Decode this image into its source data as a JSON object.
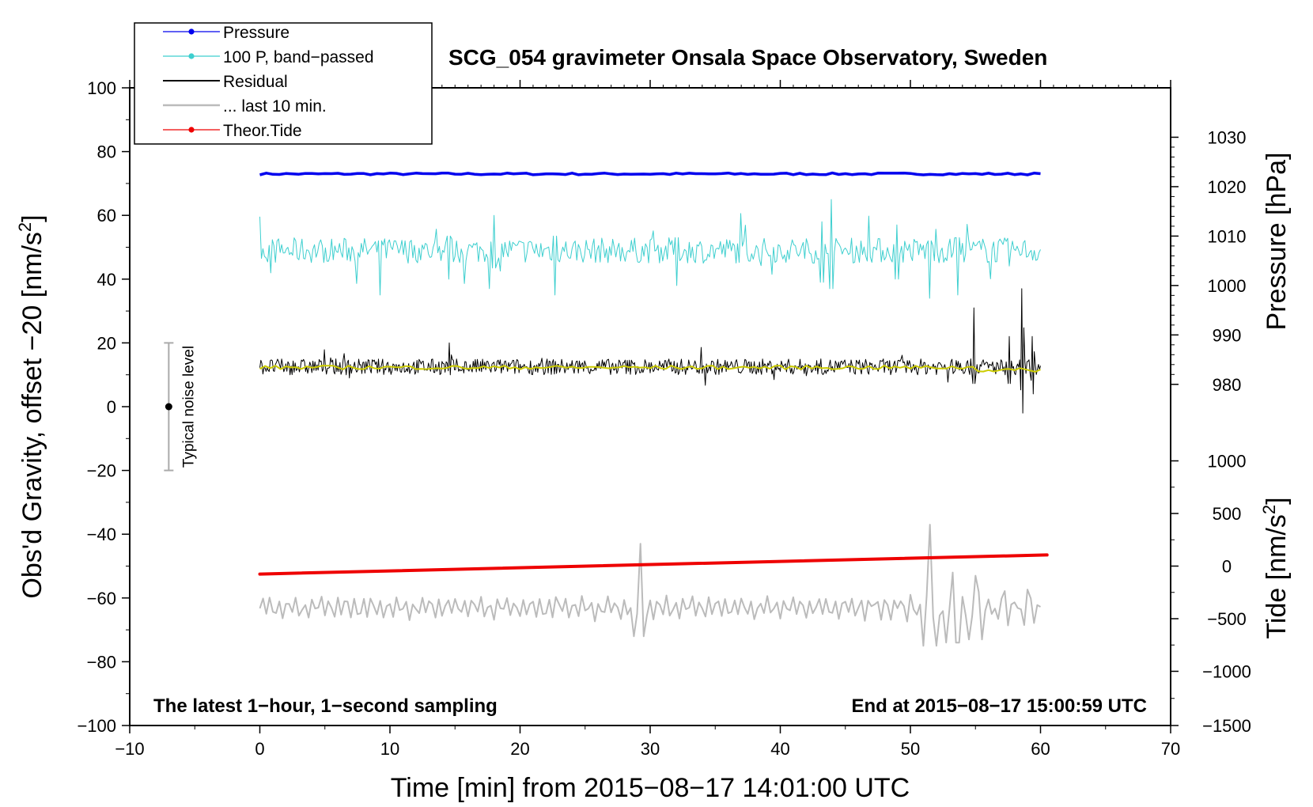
{
  "chart_data": {
    "type": "line",
    "title": "SCG_054 gravimeter Onsala Space Observatory, Sweden",
    "xlabel": "Time [min] from 2015−08−17 14:01:00 UTC",
    "ylabel": "Obs'd Gravity, offset −20 [nm/s",
    "ylabel_sup": "2",
    "ylabel_end": "]",
    "xlim": [
      -10,
      70
    ],
    "ylim": [
      -100,
      100
    ],
    "x_ticks": [
      {
        "value": -10,
        "label": "−10"
      },
      {
        "value": 0,
        "label": "0"
      },
      {
        "value": 10,
        "label": "10"
      },
      {
        "value": 20,
        "label": "20"
      },
      {
        "value": 30,
        "label": "30"
      },
      {
        "value": 40,
        "label": "40"
      },
      {
        "value": 50,
        "label": "50"
      },
      {
        "value": 60,
        "label": "60"
      },
      {
        "value": 70,
        "label": "70"
      }
    ],
    "y_ticks": [
      {
        "value": 100,
        "label": "100"
      },
      {
        "value": 80,
        "label": "80"
      },
      {
        "value": 60,
        "label": "60"
      },
      {
        "value": 40,
        "label": "40"
      },
      {
        "value": 20,
        "label": "20"
      },
      {
        "value": 0,
        "label": "0"
      },
      {
        "value": -20,
        "label": "−20"
      },
      {
        "value": -40,
        "label": "−40"
      },
      {
        "value": -60,
        "label": "−60"
      },
      {
        "value": -80,
        "label": "−80"
      },
      {
        "value": -100,
        "label": "−100"
      }
    ],
    "pressure_axis": {
      "label": "Pressure [hPa]",
      "ticks": [
        {
          "value": 1030,
          "label": "1030",
          "y": 84.5
        },
        {
          "value": 1020,
          "label": "1020",
          "y": 69.0
        },
        {
          "value": 1010,
          "label": "1010",
          "y": 53.5
        },
        {
          "value": 1000,
          "label": "1000",
          "y": 38.0
        },
        {
          "value": 990,
          "label": "990",
          "y": 22.5
        },
        {
          "value": 980,
          "label": "980",
          "y": 7.0
        }
      ]
    },
    "tide_axis": {
      "label": "Tide [nm/s",
      "label_sup": "2",
      "label_end": "]",
      "ticks": [
        {
          "value": 1000,
          "label": "1000",
          "y": -17.0
        },
        {
          "value": 500,
          "label": "500",
          "y": -33.5
        },
        {
          "value": 0,
          "label": "0",
          "y": -50.0
        },
        {
          "value": -500,
          "label": "−500",
          "y": -66.5
        },
        {
          "value": -1000,
          "label": "−1000",
          "y": -83.0
        },
        {
          "value": -1500,
          "label": "−1500",
          "y": -100.0
        }
      ]
    },
    "legend": [
      {
        "label": "Pressure",
        "color": "#0000ee",
        "marker": true
      },
      {
        "label": "100 P, band−passed",
        "color": "#3ecfcf",
        "marker": true
      },
      {
        "label": "Residual",
        "color": "#000000",
        "marker": false
      },
      {
        "label": "... last 10 min.",
        "color": "#bbbbbb",
        "marker": false
      },
      {
        "label": "Theor.Tide",
        "color": "#ee0000",
        "marker": true
      }
    ],
    "series": [
      {
        "name": "Pressure",
        "color": "#0000ee",
        "x_range": [
          0,
          60
        ],
        "level": 73,
        "noise": 0.3
      },
      {
        "name": "100 P, band-passed",
        "color": "#3ecfcf",
        "x_range": [
          0,
          60
        ],
        "level": 49,
        "noise": 4,
        "spikes": [
          {
            "x": 9.2,
            "low": 35,
            "high": 55
          },
          {
            "x": 14.5,
            "low": 40,
            "high": 58
          },
          {
            "x": 18.0,
            "low": 38,
            "high": 60
          },
          {
            "x": 22.7,
            "low": 35,
            "high": 58
          },
          {
            "x": 32.0,
            "low": 38,
            "high": 57
          },
          {
            "x": 43.2,
            "low": 29,
            "high": 58
          },
          {
            "x": 43.9,
            "low": 25,
            "high": 65
          },
          {
            "x": 49.0,
            "low": 31,
            "high": 57
          },
          {
            "x": 51.5,
            "low": 34,
            "high": 55
          },
          {
            "x": 53.6,
            "low": 35,
            "high": 57
          }
        ]
      },
      {
        "name": "Residual",
        "color": "#000000",
        "x_range": [
          0,
          60
        ],
        "level": 12.5,
        "noise": 2.5,
        "spikes": [
          {
            "x": 14.6,
            "low": 10,
            "high": 20
          },
          {
            "x": 54.9,
            "low": 2,
            "high": 31
          },
          {
            "x": 57.6,
            "low": 2,
            "high": 22
          },
          {
            "x": 58.6,
            "low": -2,
            "high": 37
          },
          {
            "x": 59.4,
            "low": 4,
            "high": 22
          }
        ]
      },
      {
        "name": "Residual smoothed",
        "color": "#cccc00",
        "x_range": [
          0,
          60
        ],
        "level": 12.3,
        "noise": 0.6
      },
      {
        "name": "Theor.Tide",
        "color": "#ee0000",
        "x": [
          0,
          60.5
        ],
        "values": [
          -52.5,
          -46.5
        ]
      },
      {
        "name": "... last 10 min.",
        "color": "#bbbbbb",
        "x_range": [
          0,
          60
        ],
        "level": -63,
        "noise": 3,
        "spikes": [
          {
            "x": 29.2,
            "low": -72,
            "high": -43
          },
          {
            "x": 51.5,
            "low": -75,
            "high": -37
          },
          {
            "x": 53.2,
            "low": -74,
            "high": -52
          },
          {
            "x": 55.0,
            "low": -73,
            "high": -53
          }
        ]
      }
    ],
    "noise_bar": {
      "x": -7,
      "center": 0,
      "low": -20,
      "high": 20,
      "label": "Typical noise level"
    },
    "note_left": "The latest 1−hour, 1−second sampling",
    "note_right": "End at 2015−08−17 15:00:59 UTC"
  }
}
